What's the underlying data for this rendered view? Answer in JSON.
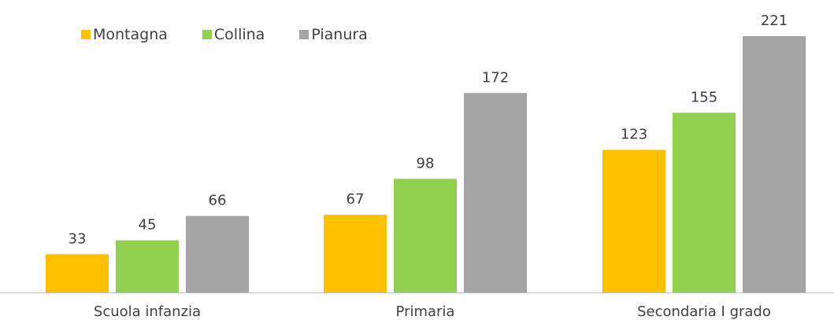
{
  "chart_data": {
    "type": "bar",
    "categories": [
      "Scuola infanzia",
      "Primaria",
      "Secondaria I grado"
    ],
    "series": [
      {
        "name": "Montagna",
        "values": [
          33,
          67,
          123
        ],
        "color": "#FFC000"
      },
      {
        "name": "Collina",
        "values": [
          45,
          98,
          155
        ],
        "color": "#92D050"
      },
      {
        "name": "Pianura",
        "values": [
          66,
          172,
          221
        ],
        "color": "#A5A5A5"
      }
    ],
    "ylim": [
      0,
      221
    ],
    "legend_position": "top-left",
    "grid": false,
    "data_labels": true,
    "title": "",
    "xlabel": "",
    "ylabel": ""
  }
}
